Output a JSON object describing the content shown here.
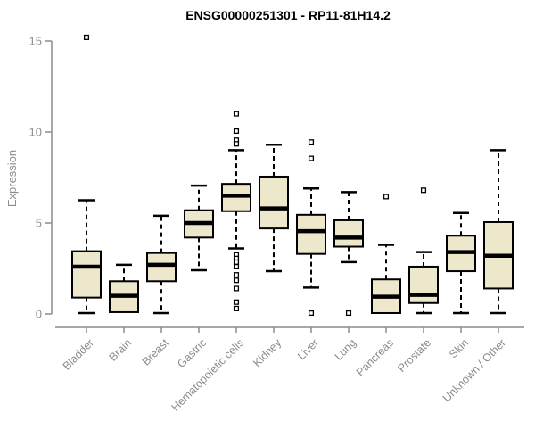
{
  "chart_data": {
    "type": "boxplot",
    "title": "ENSG00000251301 - RP11-81H14.2",
    "ylabel": "Expression",
    "xlabel": "",
    "ylim": [
      0,
      15.5
    ],
    "yticks": [
      0,
      5,
      10,
      15
    ],
    "grid": false,
    "legend": "none",
    "categories": [
      "Bladder",
      "Brain",
      "Breast",
      "Gastric",
      "Hematopoietic cells",
      "Kidney",
      "Liver",
      "Lung",
      "Pancreas",
      "Prostate",
      "Skin",
      "Unknown / Other"
    ],
    "series": [
      {
        "category": "Bladder",
        "whisker_low": 0.05,
        "q1": 0.9,
        "median": 2.6,
        "q3": 3.45,
        "whisker_high": 6.25,
        "outliers": [
          15.2
        ]
      },
      {
        "category": "Brain",
        "whisker_low": 0.1,
        "q1": 0.1,
        "median": 1.0,
        "q3": 1.8,
        "whisker_high": 2.7,
        "outliers": []
      },
      {
        "category": "Breast",
        "whisker_low": 0.05,
        "q1": 1.8,
        "median": 2.7,
        "q3": 3.35,
        "whisker_high": 5.4,
        "outliers": []
      },
      {
        "category": "Gastric",
        "whisker_low": 2.4,
        "q1": 4.2,
        "median": 5.0,
        "q3": 5.7,
        "whisker_high": 7.05,
        "outliers": []
      },
      {
        "category": "Hematopoietic cells",
        "whisker_low": 3.6,
        "q1": 5.65,
        "median": 6.5,
        "q3": 7.15,
        "whisker_high": 9.0,
        "outliers": [
          11.0,
          10.05,
          9.55,
          9.35,
          3.25,
          3.05,
          2.85,
          2.6,
          2.15,
          1.85,
          1.4,
          0.65,
          0.3
        ]
      },
      {
        "category": "Kidney",
        "whisker_low": 2.35,
        "q1": 4.7,
        "median": 5.8,
        "q3": 7.55,
        "whisker_high": 9.3,
        "outliers": []
      },
      {
        "category": "Liver",
        "whisker_low": 1.45,
        "q1": 3.3,
        "median": 4.55,
        "q3": 5.45,
        "whisker_high": 6.9,
        "outliers": [
          9.45,
          8.55,
          0.05
        ]
      },
      {
        "category": "Lung",
        "whisker_low": 2.85,
        "q1": 3.7,
        "median": 4.2,
        "q3": 5.15,
        "whisker_high": 6.7,
        "outliers": [
          0.05
        ]
      },
      {
        "category": "Pancreas",
        "whisker_low": 0.05,
        "q1": 0.05,
        "median": 0.95,
        "q3": 1.9,
        "whisker_high": 3.8,
        "outliers": [
          6.45
        ]
      },
      {
        "category": "Prostate",
        "whisker_low": 0.05,
        "q1": 0.6,
        "median": 1.05,
        "q3": 2.6,
        "whisker_high": 3.4,
        "outliers": [
          6.8
        ]
      },
      {
        "category": "Skin",
        "whisker_low": 0.05,
        "q1": 2.35,
        "median": 3.4,
        "q3": 4.3,
        "whisker_high": 5.55,
        "outliers": []
      },
      {
        "category": "Unknown / Other",
        "whisker_low": 0.05,
        "q1": 1.4,
        "median": 3.2,
        "q3": 5.05,
        "whisker_high": 9.0,
        "outliers": []
      }
    ],
    "colors": {
      "background": "#FFFFFF",
      "box_fill": "#EDE7CC",
      "box_border": "#000000",
      "median": "#000000",
      "whisker": "#000000",
      "outlier": "#000000",
      "axis": "#8C8C8C",
      "tick_label": "#8C8C8C",
      "title": "#000000"
    }
  }
}
